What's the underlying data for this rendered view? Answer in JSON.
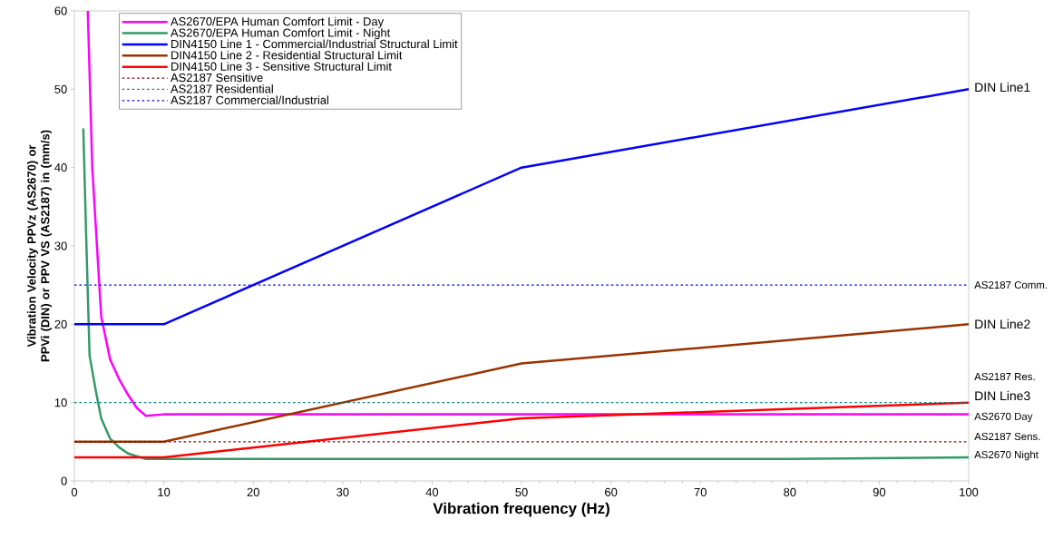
{
  "chart_data": {
    "type": "line",
    "xlabel": "Vibration frequency (Hz)",
    "ylabel": "Vibration Velocity PPVz (AS2670) or PPVi (DIN) or PPV VS (AS2187) in  (mm/s)",
    "xlim": [
      0,
      100
    ],
    "ylim": [
      0,
      60
    ],
    "xticks": [
      0,
      10,
      20,
      30,
      40,
      50,
      60,
      70,
      80,
      90,
      100
    ],
    "yticks": [
      0,
      10,
      20,
      30,
      40,
      50,
      60
    ],
    "grid": false,
    "legend": "top left",
    "marker": "none",
    "series": [
      {
        "name": "AS2670/EPA Human Comfort Limit  - Day",
        "color": "#ff00ff",
        "line_style": "solid",
        "x": [
          1.5,
          2,
          3,
          4,
          5,
          6,
          7,
          8,
          9,
          10,
          100
        ],
        "values": [
          60,
          40,
          21,
          15.5,
          13,
          11,
          9.3,
          8.3,
          8.4,
          8.5,
          8.5
        ]
      },
      {
        "name": "AS2670/EPA Human Comfort Limit - Night",
        "color": "#339966",
        "line_style": "solid",
        "x": [
          1,
          1.3,
          1.7,
          2.4,
          3,
          4,
          5,
          6,
          8,
          80,
          100
        ],
        "values": [
          45,
          32,
          16,
          11.5,
          8,
          5.4,
          4.3,
          3.5,
          2.8,
          2.8,
          3
        ]
      },
      {
        "name": "DIN4150 Line 1 - Commercial/Industrial Structural Limit",
        "color": "#0000ff",
        "line_style": "solid",
        "x": [
          0,
          10,
          50,
          100
        ],
        "values": [
          20,
          20,
          40,
          50
        ]
      },
      {
        "name": "DIN4150 Line 2 - Residential Structural Limit",
        "color": "#993300",
        "line_style": "solid",
        "x": [
          0,
          10,
          50,
          100
        ],
        "values": [
          5,
          5,
          15,
          20
        ]
      },
      {
        "name": "DIN4150 Line 3 - Sensitive Structural Limit",
        "color": "#ff0000",
        "line_style": "solid",
        "x": [
          0,
          10,
          50,
          100
        ],
        "values": [
          3,
          3,
          8,
          10
        ]
      },
      {
        "name": "AS2187 Sensitive",
        "color": "#800000",
        "line_style": "dotted",
        "x": [
          0,
          100
        ],
        "values": [
          5,
          5
        ]
      },
      {
        "name": "AS2187 Residential",
        "color": "#008080",
        "line_style": "dotted",
        "x": [
          0,
          100
        ],
        "values": [
          10,
          10
        ]
      },
      {
        "name": "AS2187 Commercial/Industrial",
        "color": "#0000ff",
        "line_style": "dotted",
        "x": [
          0,
          100
        ],
        "values": [
          25,
          25
        ]
      }
    ],
    "annotations": [
      "DIN Line1",
      "AS2187 Comm.",
      "DIN Line2",
      "AS2187 Res.",
      "DIN Line3",
      "AS2670 Day",
      "AS2187 Sens.",
      "AS2670 Night"
    ]
  }
}
